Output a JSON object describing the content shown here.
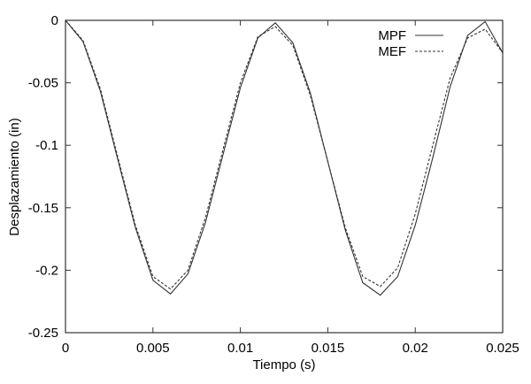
{
  "chart_data": {
    "type": "line",
    "title": "",
    "xlabel": "Tiempo (s)",
    "ylabel": "Desplazamiento (in)",
    "xlim": [
      0,
      0.025
    ],
    "ylim": [
      -0.25,
      0
    ],
    "grid": false,
    "legend_position": "top-right",
    "x_ticks": [
      0,
      0.005,
      0.01,
      0.015,
      0.02,
      0.025
    ],
    "x_tick_labels": [
      "0",
      "0.005",
      "0.01",
      "0.015",
      "0.02",
      "0.025"
    ],
    "y_ticks": [
      0,
      -0.05,
      -0.1,
      -0.15,
      -0.2,
      -0.25
    ],
    "y_tick_labels": [
      "0",
      "-0.05",
      "-0.1",
      "-0.15",
      "-0.2",
      "-0.25"
    ],
    "x": [
      0,
      0.001,
      0.002,
      0.003,
      0.004,
      0.005,
      0.006,
      0.007,
      0.008,
      0.009,
      0.01,
      0.011,
      0.012,
      0.013,
      0.014,
      0.015,
      0.016,
      0.017,
      0.018,
      0.019,
      0.02,
      0.021,
      0.022,
      0.023,
      0.024,
      0.025
    ],
    "series": [
      {
        "name": "MPF",
        "style": "solid",
        "values": [
          0,
          -0.017,
          -0.057,
          -0.112,
          -0.166,
          -0.208,
          -0.219,
          -0.203,
          -0.162,
          -0.108,
          -0.054,
          -0.014,
          -0.002,
          -0.018,
          -0.058,
          -0.113,
          -0.168,
          -0.21,
          -0.22,
          -0.205,
          -0.164,
          -0.11,
          -0.053,
          -0.012,
          -0.001,
          -0.026
        ]
      },
      {
        "name": "MEF",
        "style": "dashed",
        "values": [
          0,
          -0.016,
          -0.055,
          -0.11,
          -0.164,
          -0.205,
          -0.215,
          -0.2,
          -0.158,
          -0.104,
          -0.05,
          -0.013,
          -0.005,
          -0.02,
          -0.06,
          -0.113,
          -0.166,
          -0.205,
          -0.213,
          -0.198,
          -0.155,
          -0.1,
          -0.046,
          -0.014,
          -0.007,
          -0.026
        ]
      }
    ]
  },
  "colors": {
    "axis": "#333333",
    "mpf_line": "#333333",
    "mef_line": "#333333",
    "background": "#ffffff"
  }
}
